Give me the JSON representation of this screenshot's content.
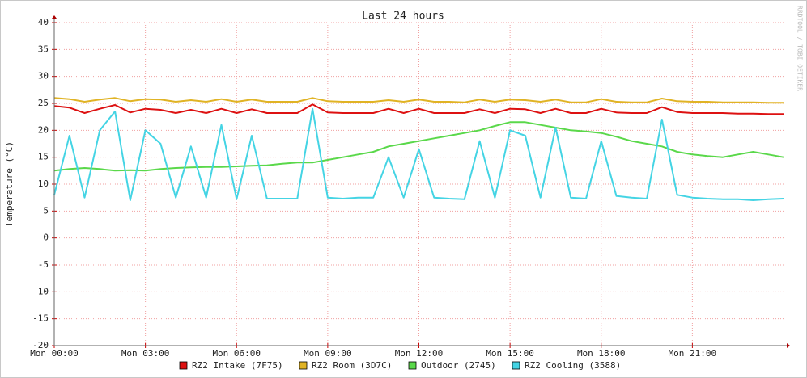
{
  "chart_data": {
    "type": "line",
    "title": "Last 24 hours",
    "ylabel": "Temperature (°C)",
    "watermark": "RRDTOOL / TOBI OETIKER",
    "x": [
      0,
      0.5,
      1,
      1.5,
      2,
      2.5,
      3,
      3.5,
      4,
      4.5,
      5,
      5.5,
      6,
      6.5,
      7,
      7.5,
      8,
      8.5,
      9,
      9.5,
      10,
      10.5,
      11,
      11.5,
      12,
      12.5,
      13,
      13.5,
      14,
      14.5,
      15,
      15.5,
      16,
      16.5,
      17,
      17.5,
      18,
      18.5,
      19,
      19.5,
      20,
      20.5,
      21,
      21.5,
      22,
      22.5,
      23,
      23.5,
      24
    ],
    "xlim": [
      0,
      24
    ],
    "xticks": [
      {
        "value": 0,
        "label": "Mon 00:00"
      },
      {
        "value": 3,
        "label": "Mon 03:00"
      },
      {
        "value": 6,
        "label": "Mon 06:00"
      },
      {
        "value": 9,
        "label": "Mon 09:00"
      },
      {
        "value": 12,
        "label": "Mon 12:00"
      },
      {
        "value": 15,
        "label": "Mon 15:00"
      },
      {
        "value": 18,
        "label": "Mon 18:00"
      },
      {
        "value": 21,
        "label": "Mon 21:00"
      }
    ],
    "ylim": [
      -20,
      40
    ],
    "yticks": [
      -20,
      -15,
      -10,
      -5,
      0,
      5,
      10,
      15,
      20,
      25,
      30,
      35,
      40
    ],
    "grid": true,
    "series": [
      {
        "name": "RZ2 Intake (7F75)",
        "color": "#dd1111",
        "values": [
          24.5,
          24.2,
          23.2,
          24,
          24.7,
          23.3,
          24,
          23.8,
          23.2,
          23.8,
          23.2,
          24,
          23.2,
          23.9,
          23.2,
          23.2,
          23.2,
          24.8,
          23.3,
          23.2,
          23.2,
          23.2,
          24,
          23.2,
          24,
          23.2,
          23.2,
          23.2,
          23.9,
          23.2,
          24,
          23.9,
          23.2,
          24,
          23.2,
          23.2,
          24,
          23.3,
          23.2,
          23.2,
          24.3,
          23.4,
          23.2,
          23.2,
          23.2,
          23.1,
          23.1,
          23,
          23
        ]
      },
      {
        "name": "RZ2 Room (3D7C)",
        "color": "#e0b324",
        "values": [
          26,
          25.8,
          25.3,
          25.7,
          26,
          25.4,
          25.8,
          25.7,
          25.3,
          25.6,
          25.3,
          25.8,
          25.3,
          25.7,
          25.3,
          25.3,
          25.3,
          26,
          25.4,
          25.3,
          25.3,
          25.3,
          25.6,
          25.3,
          25.7,
          25.3,
          25.3,
          25.2,
          25.7,
          25.3,
          25.7,
          25.6,
          25.3,
          25.7,
          25.2,
          25.2,
          25.8,
          25.3,
          25.2,
          25.2,
          25.9,
          25.4,
          25.3,
          25.3,
          25.2,
          25.2,
          25.2,
          25.1,
          25.1
        ]
      },
      {
        "name": "Outdoor (2745)",
        "color": "#5ad84a",
        "values": [
          12.5,
          12.8,
          13,
          12.8,
          12.5,
          12.6,
          12.5,
          12.8,
          13,
          13.1,
          13.2,
          13.2,
          13.3,
          13.4,
          13.5,
          13.8,
          14,
          14,
          14.5,
          15,
          15.5,
          16,
          17,
          17.5,
          18,
          18.5,
          19,
          19.5,
          20,
          20.8,
          21.5,
          21.5,
          21,
          20.5,
          20,
          19.8,
          19.5,
          18.8,
          18,
          17.5,
          17,
          16,
          15.5,
          15.2,
          15,
          15.5,
          16,
          15.5,
          15
        ]
      },
      {
        "name": "RZ2 Cooling (3588)",
        "color": "#44d4e4",
        "values": [
          8,
          19,
          7.5,
          20,
          23.5,
          7,
          20,
          17.5,
          7.5,
          17,
          7.5,
          21,
          7.2,
          19,
          7.3,
          7.3,
          7.3,
          24,
          7.5,
          7.3,
          7.5,
          7.5,
          15,
          7.5,
          16.5,
          7.5,
          7.3,
          7.2,
          18,
          7.5,
          20,
          19,
          7.5,
          20.5,
          7.5,
          7.3,
          18,
          7.8,
          7.5,
          7.3,
          22,
          8,
          7.5,
          7.3,
          7.2,
          7.2,
          7,
          7.2,
          7.3
        ]
      }
    ]
  }
}
